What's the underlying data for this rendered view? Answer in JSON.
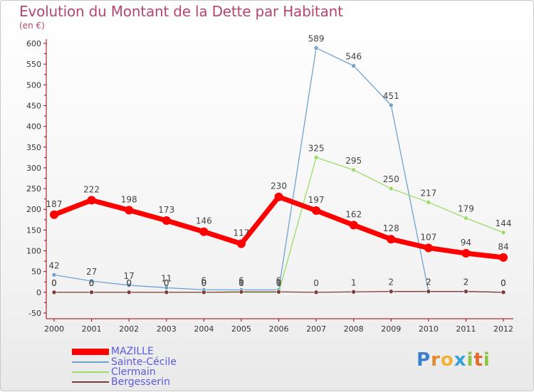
{
  "chart_data": {
    "type": "line",
    "title": "Evolution du Montant de la Dette par Habitant",
    "unit_label": "(en €)",
    "x": [
      "2000",
      "2001",
      "2002",
      "2003",
      "2004",
      "2005",
      "2006",
      "2007",
      "2008",
      "2009",
      "2010",
      "2011",
      "2012"
    ],
    "ylim": [
      -50,
      600
    ],
    "yticks": [
      -50,
      0,
      50,
      100,
      150,
      200,
      250,
      300,
      350,
      400,
      450,
      500,
      550,
      600
    ],
    "grid": false,
    "legend_position": "bottom-left",
    "series": [
      {
        "name": "MAZILLE",
        "color": "#ff0000",
        "values": [
          187,
          222,
          198,
          173,
          146,
          117,
          230,
          197,
          162,
          128,
          107,
          94,
          84
        ],
        "labels": [
          "187",
          "222",
          "198",
          "173",
          "146",
          "117",
          "230",
          "197",
          "162",
          "128",
          "107",
          "94",
          "84"
        ]
      },
      {
        "name": "Sainte-Cécile",
        "color": "#6fa3cf",
        "values": [
          42,
          27,
          17,
          11,
          6,
          6,
          6,
          589,
          546,
          451,
          2,
          2,
          0
        ],
        "labels": [
          "42",
          "27",
          "17",
          "11",
          "6",
          "6",
          "6",
          "589",
          "546",
          "451",
          "2",
          "2",
          "0"
        ]
      },
      {
        "name": "Clermain",
        "color": "#99dd66",
        "values": [
          0,
          0,
          0,
          0,
          0,
          0,
          0,
          325,
          295,
          250,
          217,
          179,
          144
        ],
        "labels": [
          "0",
          "0",
          "0",
          "0",
          "0",
          "0",
          "0",
          "325",
          "295",
          "250",
          "217",
          "179",
          "144"
        ]
      },
      {
        "name": "Bergesserin",
        "color": "#7a3b3b",
        "values": [
          0,
          0,
          0,
          0,
          0,
          1,
          1,
          0,
          1,
          2,
          2,
          2,
          0
        ],
        "labels": [
          "0",
          "0",
          "0",
          "0",
          "0",
          "1",
          "1",
          "0",
          "1",
          "2",
          "2",
          "2",
          "0"
        ]
      }
    ]
  },
  "brand": {
    "logo_letters": [
      "P",
      "r",
      "o",
      "x",
      "i",
      "t",
      "i"
    ]
  }
}
